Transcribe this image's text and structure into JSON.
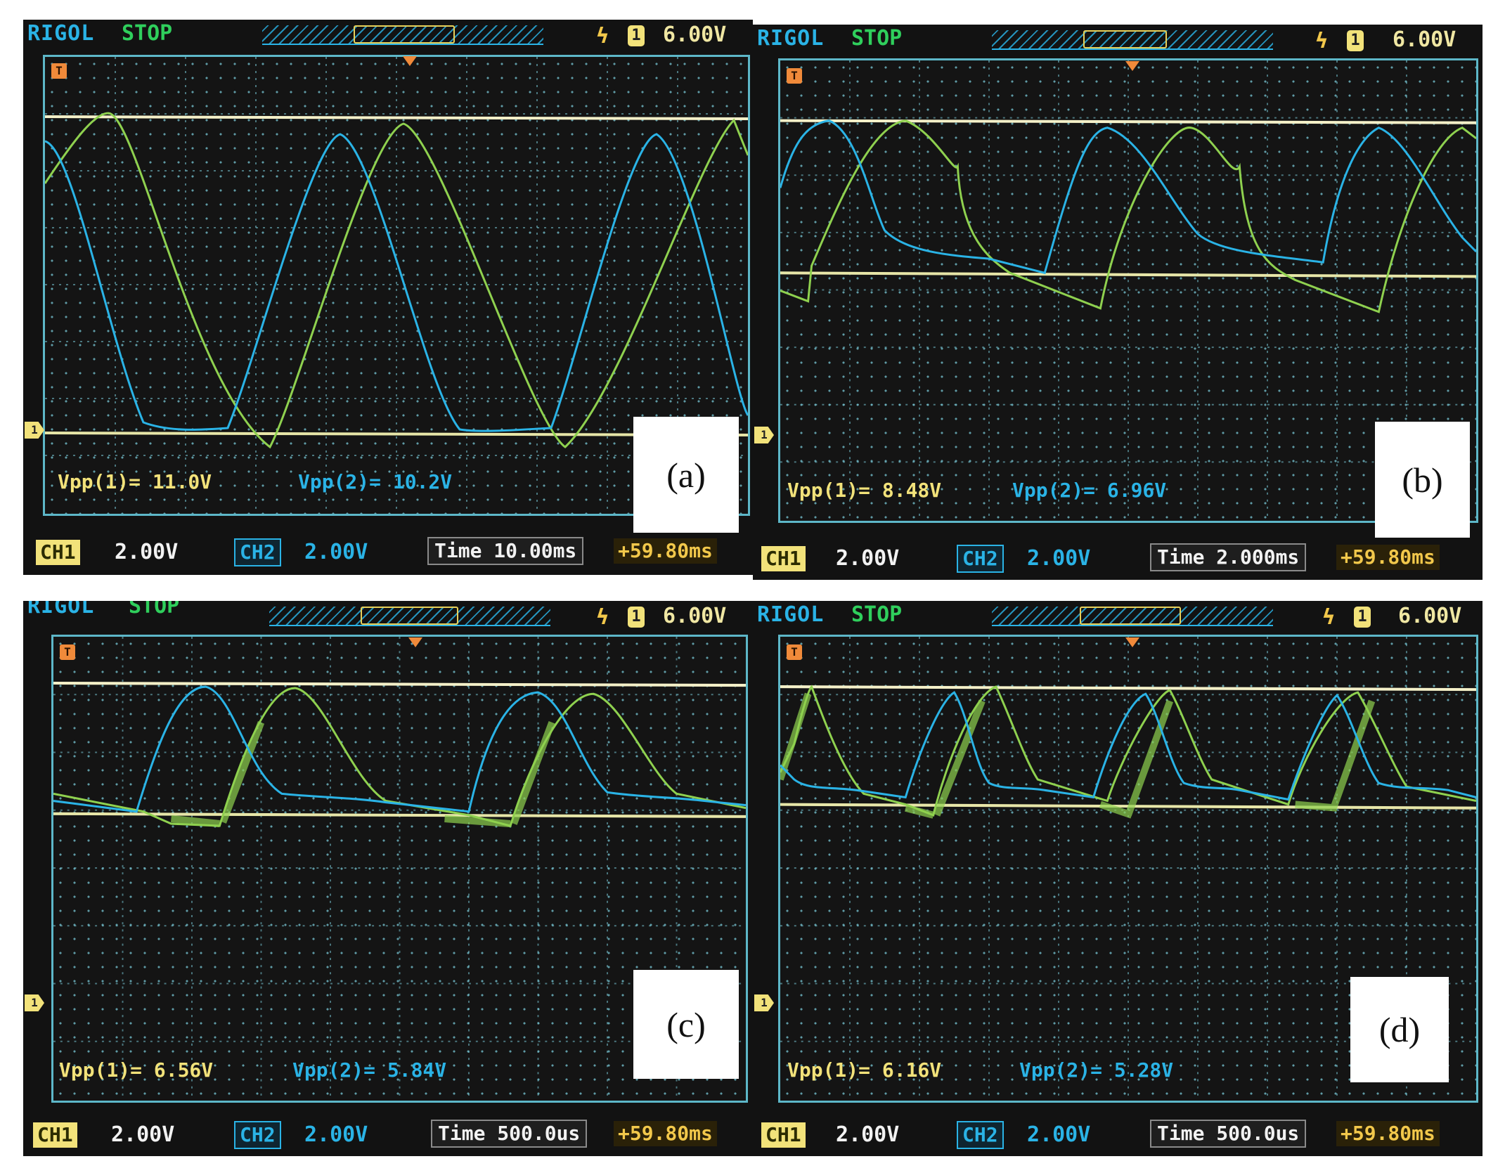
{
  "panels": [
    {
      "brand": "RIGOL",
      "status": "STOP",
      "trigger_level": "6.00V",
      "trigger_channel": "1",
      "vpp1": "Vpp(1)= 11.0V",
      "vpp2": "Vpp(2)= 10.2V",
      "ch1_label": "CH1",
      "ch1_scale": "2.00V",
      "ch2_label": "CH2",
      "ch2_scale": "2.00V",
      "time": "Time 10.00ms",
      "offset": "+59.80ms",
      "label": "(a)",
      "waveform": "sine"
    },
    {
      "brand": "RIGOL",
      "status": "STOP",
      "trigger_level": "6.00V",
      "trigger_channel": "1",
      "vpp1": "Vpp(1)= 8.48V",
      "vpp2": "Vpp(2)= 6.96V",
      "ch1_label": "CH1",
      "ch1_scale": "2.00V",
      "ch2_label": "CH2",
      "ch2_scale": "2.00V",
      "time": "Time 2.000ms",
      "offset": "+59.80ms",
      "label": "(b)",
      "waveform": "skewed"
    },
    {
      "brand": "RIGOL",
      "status": "STOP",
      "trigger_level": "6.00V",
      "trigger_channel": "1",
      "vpp1": "Vpp(1)= 6.56V",
      "vpp2": "Vpp(2)= 5.84V",
      "ch1_label": "CH1",
      "ch1_scale": "2.00V",
      "ch2_label": "CH2",
      "ch2_scale": "2.00V",
      "time": "Time 500.0us",
      "offset": "+59.80ms",
      "label": "(c)",
      "waveform": "pulse"
    },
    {
      "brand": "RIGOL",
      "status": "STOP",
      "trigger_level": "6.00V",
      "trigger_channel": "1",
      "vpp1": "Vpp(1)= 6.16V",
      "vpp2": "Vpp(2)= 5.28V",
      "ch1_label": "CH1",
      "ch1_scale": "2.00V",
      "ch2_label": "CH2",
      "ch2_scale": "2.00V",
      "time": "Time 500.0us",
      "offset": "+59.80ms",
      "label": "(d)",
      "waveform": "spike"
    }
  ],
  "colors": {
    "ch1_trace": "#8fd14f",
    "ch2_trace": "#2ab3e6",
    "reference_line": "#f4f0c8",
    "label_box": "#ffffff"
  }
}
